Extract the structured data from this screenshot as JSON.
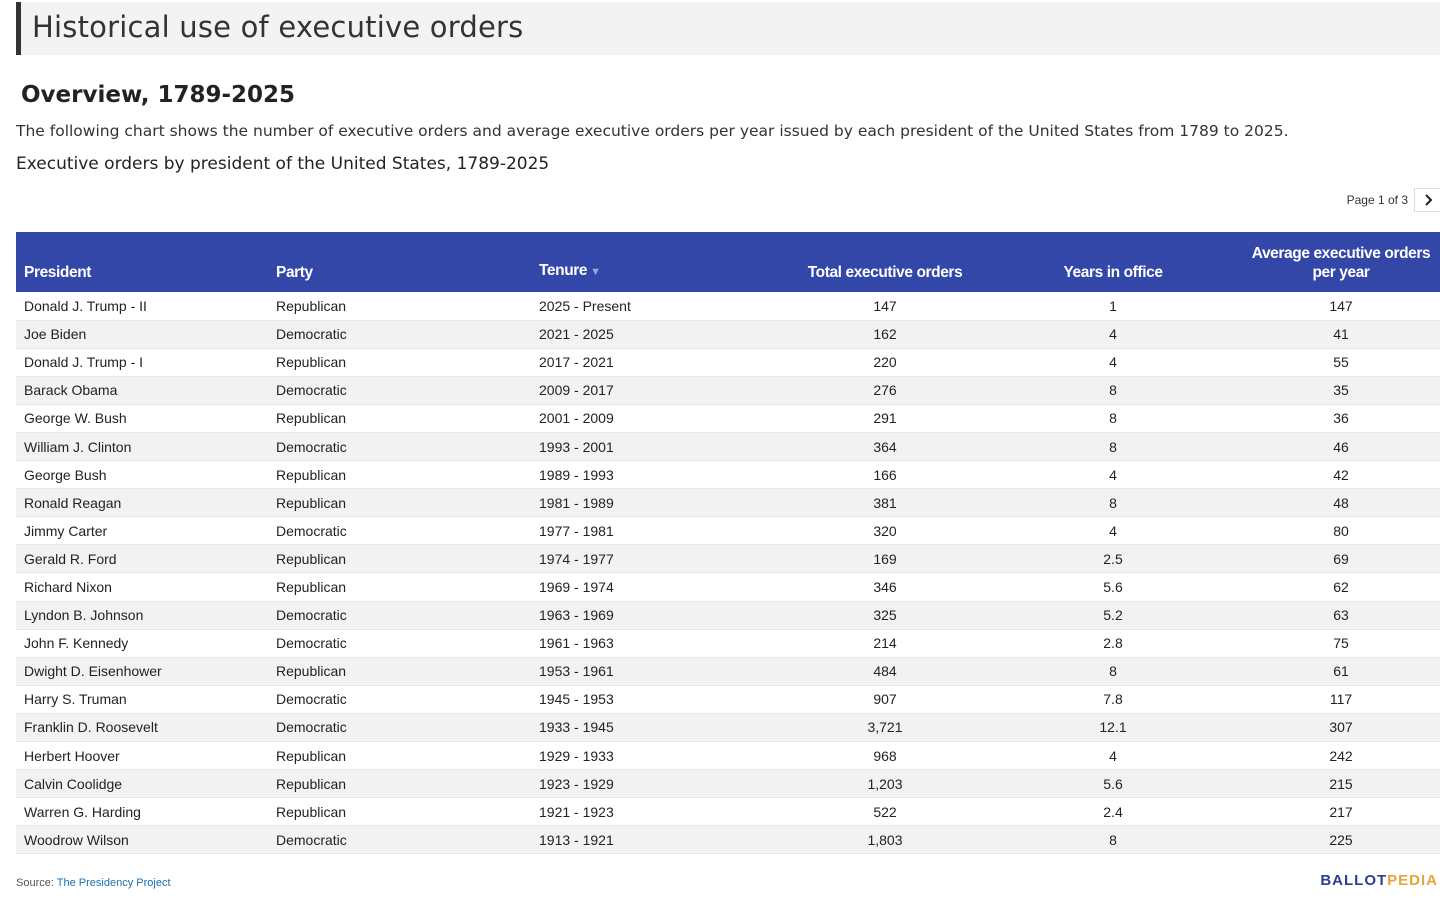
{
  "header": {
    "title": "Historical use of executive orders"
  },
  "section": {
    "heading": "Overview, 1789-2025",
    "description": "The following chart shows the number of executive orders and average executive orders per year issued by each president of the United States from 1789 to 2025.",
    "chart_title": "Executive orders by president of the United States, 1789-2025"
  },
  "pagination": {
    "text": "Page 1 of 3",
    "next_icon": "chevron-right-icon"
  },
  "table": {
    "columns": [
      "President",
      "Party",
      "Tenure",
      "Total executive orders",
      "Years in office",
      "Average executive orders per year"
    ],
    "sort_icon": "sort-down-icon",
    "rows": [
      [
        "Donald J. Trump - II",
        "Republican",
        "2025 - Present",
        "147",
        "1",
        "147"
      ],
      [
        "Joe Biden",
        "Democratic",
        "2021 - 2025",
        "162",
        "4",
        "41"
      ],
      [
        "Donald J. Trump - I",
        "Republican",
        "2017 - 2021",
        "220",
        "4",
        "55"
      ],
      [
        "Barack Obama",
        "Democratic",
        "2009 - 2017",
        "276",
        "8",
        "35"
      ],
      [
        "George W. Bush",
        "Republican",
        "2001 - 2009",
        "291",
        "8",
        "36"
      ],
      [
        "William J. Clinton",
        "Democratic",
        "1993 - 2001",
        "364",
        "8",
        "46"
      ],
      [
        "George Bush",
        "Republican",
        "1989 - 1993",
        "166",
        "4",
        "42"
      ],
      [
        "Ronald Reagan",
        "Republican",
        "1981 - 1989",
        "381",
        "8",
        "48"
      ],
      [
        "Jimmy Carter",
        "Democratic",
        "1977 - 1981",
        "320",
        "4",
        "80"
      ],
      [
        "Gerald R. Ford",
        "Republican",
        "1974 - 1977",
        "169",
        "2.5",
        "69"
      ],
      [
        "Richard Nixon",
        "Republican",
        "1969 - 1974",
        "346",
        "5.6",
        "62"
      ],
      [
        "Lyndon B. Johnson",
        "Democratic",
        "1963 - 1969",
        "325",
        "5.2",
        "63"
      ],
      [
        "John F. Kennedy",
        "Democratic",
        "1961 - 1963",
        "214",
        "2.8",
        "75"
      ],
      [
        "Dwight D. Eisenhower",
        "Republican",
        "1953 - 1961",
        "484",
        "8",
        "61"
      ],
      [
        "Harry S. Truman",
        "Democratic",
        "1945 - 1953",
        "907",
        "7.8",
        "117"
      ],
      [
        "Franklin D. Roosevelt",
        "Democratic",
        "1933 - 1945",
        "3,721",
        "12.1",
        "307"
      ],
      [
        "Herbert Hoover",
        "Republican",
        "1929 - 1933",
        "968",
        "4",
        "242"
      ],
      [
        "Calvin Coolidge",
        "Republican",
        "1923 - 1929",
        "1,203",
        "5.6",
        "215"
      ],
      [
        "Warren G. Harding",
        "Republican",
        "1921 - 1923",
        "522",
        "2.4",
        "217"
      ],
      [
        "Woodrow Wilson",
        "Democratic",
        "1913 - 1921",
        "1,803",
        "8",
        "225"
      ]
    ]
  },
  "footer": {
    "source_label": "Source:",
    "source_link": "The Presidency Project",
    "logo_part1": "BALLOT",
    "logo_part2": "PEDIA"
  },
  "colors": {
    "header_bg": "#3347a8",
    "logo_blue": "#2f3c8f",
    "logo_gold": "#e8a33a",
    "link": "#1a6fb0"
  }
}
